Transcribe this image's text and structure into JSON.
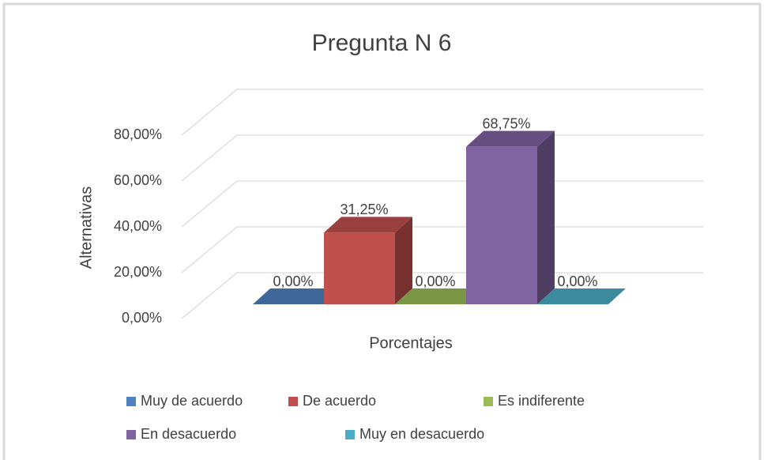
{
  "chart_data": {
    "type": "bar3d",
    "title": "Pregunta N 6",
    "xlabel": "Porcentajes",
    "ylabel": "Alternativas",
    "ylim": [
      0,
      80
    ],
    "yticks": [
      {
        "value": 0,
        "label": "0,00%"
      },
      {
        "value": 20,
        "label": "20,00%"
      },
      {
        "value": 40,
        "label": "40,00%"
      },
      {
        "value": 60,
        "label": "60,00%"
      },
      {
        "value": 80,
        "label": "80,00%"
      }
    ],
    "grid": true,
    "legend": "bottom",
    "series": [
      {
        "name": "Muy de acuerdo",
        "color": "#4f81bd",
        "values": [
          0
        ],
        "value_labels": [
          "0,00%"
        ]
      },
      {
        "name": "De acuerdo",
        "color": "#c0504d",
        "values": [
          31.25
        ],
        "value_labels": [
          "31,25%"
        ]
      },
      {
        "name": "Es indiferente",
        "color": "#9bbb59",
        "values": [
          0
        ],
        "value_labels": [
          "0,00%"
        ]
      },
      {
        "name": "En desacuerdo",
        "color": "#8064a2",
        "values": [
          68.75
        ],
        "value_labels": [
          "68,75%"
        ]
      },
      {
        "name": "Muy en desacuerdo",
        "color": "#4bacc6",
        "values": [
          0
        ],
        "value_labels": [
          "0,00%"
        ]
      }
    ]
  }
}
